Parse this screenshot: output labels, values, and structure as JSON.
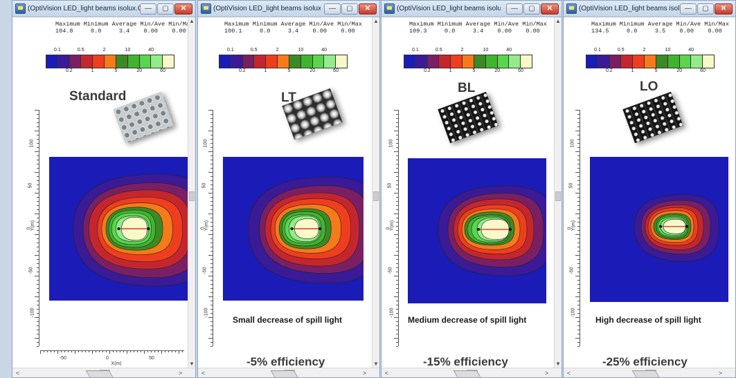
{
  "legend": {
    "upper_labels": [
      "0.1",
      "0.5",
      "2",
      "10",
      "40"
    ],
    "lower_labels": [
      "0.2",
      "1",
      "5",
      "20",
      "60"
    ],
    "colors": [
      "#1b1bb8",
      "#3a1a96",
      "#7a1f63",
      "#c5262d",
      "#ef3e1d",
      "#f57a1a",
      "#3b8a23",
      "#3fb52e",
      "#59d64d",
      "#93ec89",
      "#f8f8c8"
    ]
  },
  "y_axis": {
    "tick_labels": [
      "100",
      "50",
      "0",
      "-50",
      "-100"
    ],
    "label": "Y(m)"
  },
  "x_axis": {
    "tick_labels": [
      "-50",
      "0",
      "50"
    ],
    "label": "X(m)"
  },
  "stats_header": "Maximum Minimum Average Min/Ave Min/Max",
  "windows": [
    {
      "title": "(OptiVision LED_light beams isolux.CAR) ...",
      "stats_values": "104.8     0.0     3.4    0.00    0.00",
      "heading": "Standard",
      "caption": "",
      "efficiency": "",
      "sample": "perforated reflector plate"
    },
    {
      "title": "(OptiVision LED_light beams isolux.CAR) ...",
      "stats_values": "100.1     0.0     3.4    0.00    0.00",
      "heading": "LT",
      "caption": "Small decrease of spill light",
      "efficiency": "-5% efficiency",
      "sample": "dimpled lens array"
    },
    {
      "title": "(OptiVision LED_light beams isolux.CAR)...",
      "stats_values": "109.3     0.0     3.4    0.00    0.00",
      "heading": "BL",
      "caption": "Medium decrease of spill light",
      "efficiency": "-15% efficiency",
      "sample": "LED board with baffles"
    },
    {
      "title": "(OptiVision LED_light beams isolux.CAR)...",
      "stats_values": "134.5     0.0     3.5    0.00    0.00",
      "heading": "LO",
      "caption": "High decrease of spill light",
      "efficiency": "-25% efficiency",
      "sample": "LED board with louvres"
    }
  ],
  "window_buttons": {
    "minimize": "—",
    "maximize": "▢",
    "close": "✕"
  },
  "scroll_glyphs": {
    "up": "▲",
    "down": "▼",
    "left": "<",
    "right": ">"
  }
}
